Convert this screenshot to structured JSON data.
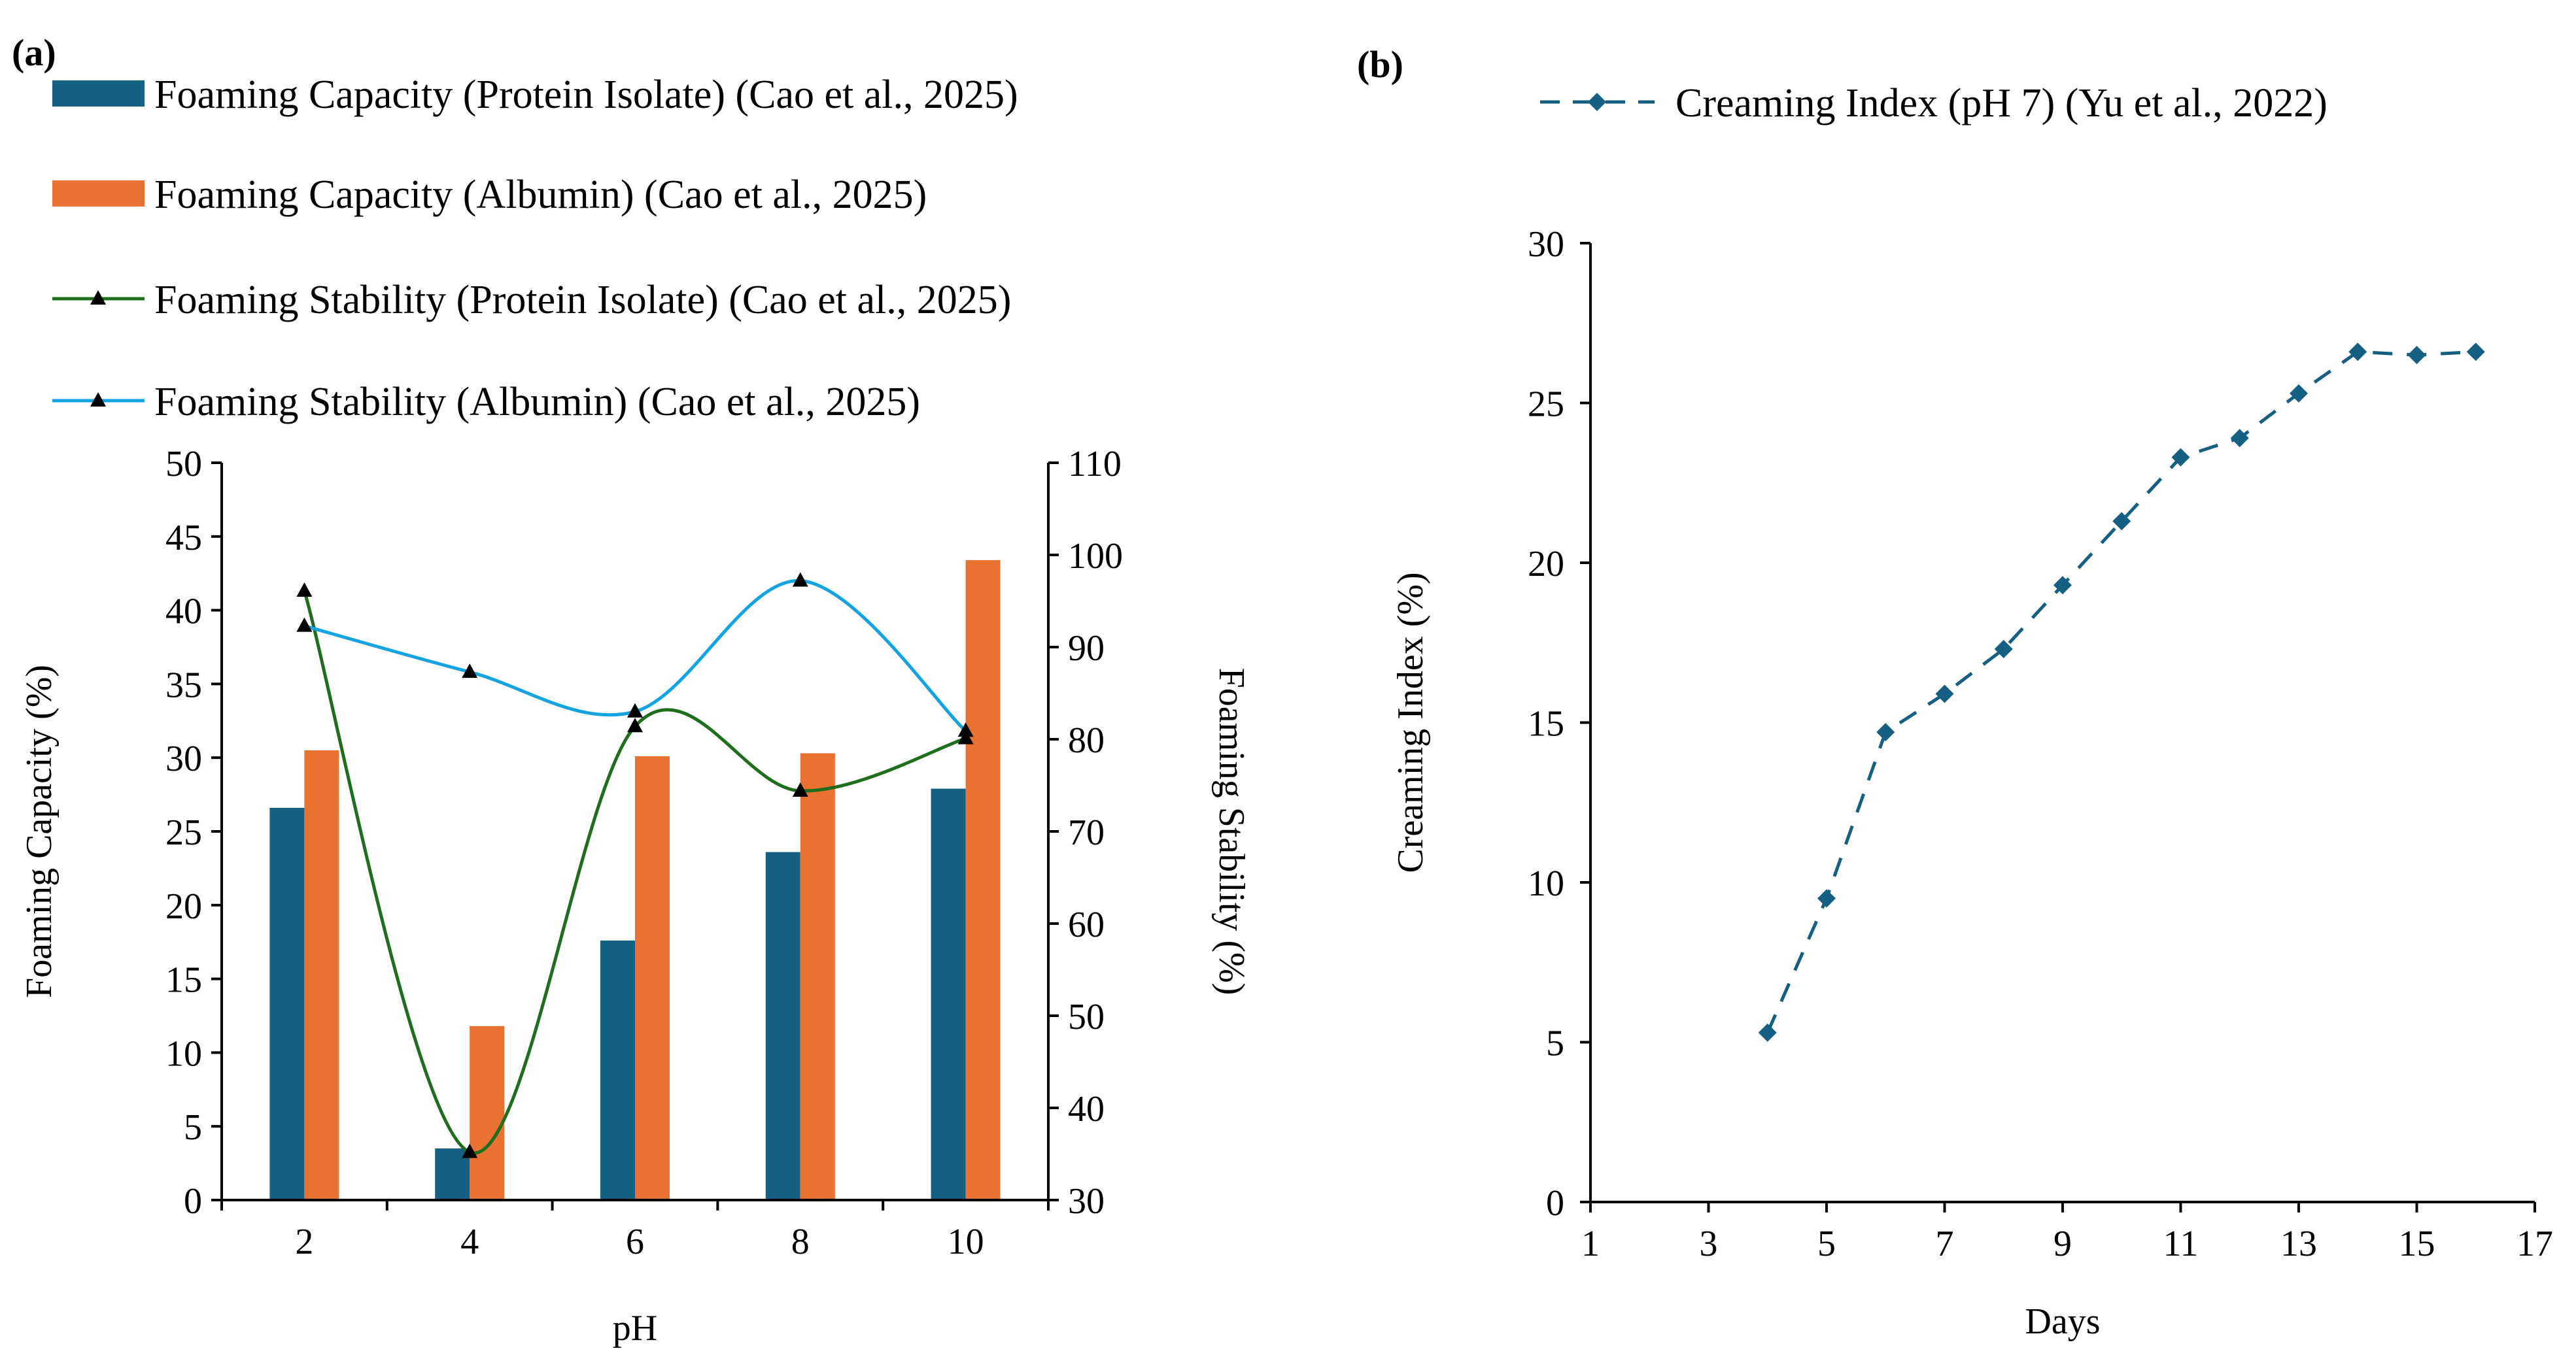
{
  "chart_data": [
    {
      "panel_label": "(a)",
      "type": "bar",
      "categories": [
        "2",
        "4",
        "6",
        "8",
        "10"
      ],
      "xlabel": "pH",
      "ylabel": "Foaming Capacity (%)",
      "y2label": "Foaming Stability (%)",
      "ylim": [
        0,
        50
      ],
      "yticks": [
        0,
        5,
        10,
        15,
        20,
        25,
        30,
        35,
        40,
        45,
        50
      ],
      "y2lim": [
        30,
        110
      ],
      "y2ticks": [
        30,
        40,
        50,
        60,
        70,
        80,
        90,
        100,
        110
      ],
      "legend_placement": "top",
      "series": [
        {
          "name": "Foaming Capacity (Protein Isolate) (Cao et al., 2025)",
          "kind": "bar",
          "axis": "left",
          "color": "#166084",
          "values": [
            26.6,
            3.5,
            17.6,
            23.6,
            27.9
          ]
        },
        {
          "name": "Foaming Capacity (Albumin) (Cao et al., 2025)",
          "kind": "bar",
          "axis": "left",
          "color": "#E97132",
          "values": [
            30.5,
            11.8,
            30.1,
            30.3,
            43.4
          ]
        },
        {
          "name": "Foaming Stability (Protein Isolate) (Cao et al., 2025)",
          "kind": "line",
          "axis": "right",
          "color": "#1E6E1E",
          "values": [
            96.1,
            35.2,
            81.4,
            74.4,
            80.1
          ]
        },
        {
          "name": "Foaming Stability (Albumin) (Cao et al., 2025)",
          "kind": "line",
          "axis": "right",
          "color": "#12A3E0",
          "values": [
            92.3,
            87.3,
            83.0,
            97.2,
            80.9
          ]
        }
      ]
    },
    {
      "panel_label": "(b)",
      "type": "line",
      "xlabel": "Days",
      "ylabel": "Creaming Index (%)",
      "xlim": [
        1,
        17
      ],
      "xticks": [
        1,
        3,
        5,
        7,
        9,
        11,
        13,
        15,
        17
      ],
      "ylim": [
        0,
        30
      ],
      "yticks": [
        0,
        5,
        10,
        15,
        20,
        25,
        30
      ],
      "legend_placement": "top",
      "series": [
        {
          "name": "Creaming Index (pH 7) (Yu et al., 2022)",
          "color": "#156082",
          "x": [
            4,
            5,
            6,
            7,
            8,
            9,
            10,
            11,
            12,
            13,
            14,
            15,
            16
          ],
          "y": [
            5.3,
            9.5,
            14.7,
            15.9,
            17.3,
            19.3,
            21.3,
            23.3,
            23.9,
            25.3,
            26.6,
            26.5,
            26.6
          ]
        }
      ]
    }
  ]
}
